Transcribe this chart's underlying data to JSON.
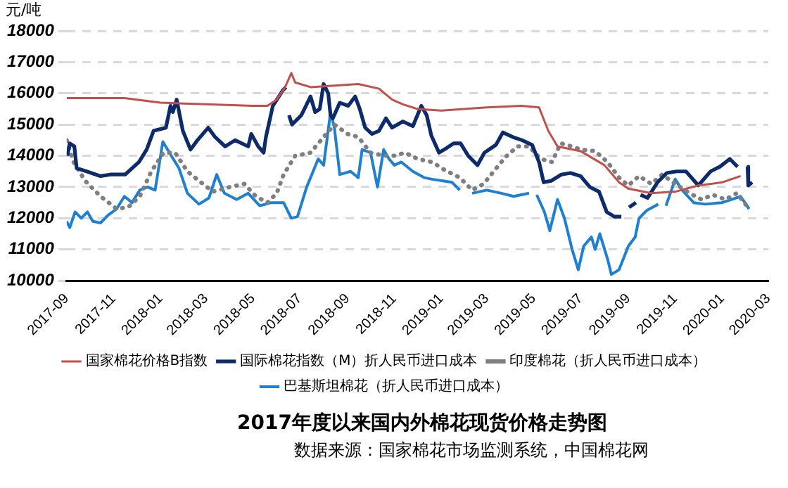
{
  "chart_data": {
    "type": "line",
    "title": "2017年度以来国内外棉花现货价格走势图",
    "subtitle": "数据来源：国家棉花市场监测系统，中国棉花网",
    "ylabel": "元/吨",
    "xlim": [
      "2017-09",
      "2020-03"
    ],
    "xticks": [
      "2017-09",
      "2017-11",
      "2018-01",
      "2018-03",
      "2018-05",
      "2018-07",
      "2018-09",
      "2018-11",
      "2019-01",
      "2019-03",
      "2019-05",
      "2019-07",
      "2019-09",
      "2019-11",
      "2020-01",
      "2020-03"
    ],
    "ylim": [
      10000,
      18000
    ],
    "yticks": [
      10000,
      11000,
      12000,
      13000,
      14000,
      15000,
      16000,
      17000,
      18000
    ],
    "grid": "y",
    "legend": "bottom",
    "marker": "none",
    "series": [
      {
        "name": "国家棉花价格B指数",
        "color": "#c0504d",
        "line_style": "solid",
        "x": [
          "2017-09-01",
          "2017-10-15",
          "2017-11-15",
          "2018-01-01",
          "2018-03-01",
          "2018-05-01",
          "2018-05-20",
          "2018-06-01",
          "2018-06-12",
          "2018-06-20",
          "2018-06-25",
          "2018-07-15",
          "2018-08-15",
          "2018-09-15",
          "2018-10-12",
          "2018-10-29",
          "2018-11-12",
          "2018-12-01",
          "2019-01-01",
          "2019-03-01",
          "2019-04-15",
          "2019-05-08",
          "2019-05-20",
          "2019-06-01",
          "2019-07-01",
          "2019-08-01",
          "2019-08-20",
          "2019-09-01",
          "2019-10-01",
          "2019-11-01",
          "2019-12-01",
          "2020-01-01",
          "2020-01-25"
        ],
        "values": [
          15850,
          15850,
          15850,
          15700,
          15650,
          15600,
          15600,
          15800,
          16200,
          16650,
          16350,
          16200,
          16250,
          16300,
          16150,
          15800,
          15650,
          15500,
          15450,
          15550,
          15600,
          15550,
          14800,
          14300,
          14150,
          13700,
          13150,
          12950,
          12800,
          12850,
          13050,
          13150,
          13350
        ]
      },
      {
        "name": "国际棉花指数（M）折人民币进口成本",
        "color": "#0d2a6b",
        "line_style": "solid",
        "x": [
          "2017-09-02",
          "2017-09-05",
          "2017-09-11",
          "2017-09-14",
          "2017-09-27",
          "2017-10-15",
          "2017-10-28",
          "2017-11-16",
          "2017-12-04",
          "2017-12-14",
          "2017-12-23",
          "2018-01-08",
          "2018-01-14",
          "2018-01-17",
          "2018-01-22",
          "2018-01-30",
          "2018-02-09",
          "2018-02-18",
          "2018-03-04",
          "2018-03-13",
          "2018-03-26",
          "2018-04-08",
          "2018-04-25",
          "2018-04-29",
          "2018-05-08",
          "2018-05-15",
          "2018-05-18",
          "2018-05-27",
          "2018-06-09",
          "2018-06-13",
          "2018-06-15",
          "2018-06-17",
          "2018-06-21",
          "2018-07-03",
          "2018-07-09",
          "2018-07-15",
          "2018-07-21",
          "2018-07-27",
          "2018-08-01",
          "2018-08-07",
          "2018-08-10",
          "2018-08-13",
          "2018-08-22",
          "2018-09-02",
          "2018-09-11",
          "2018-09-17",
          "2018-09-24",
          "2018-10-03",
          "2018-10-12",
          "2018-10-21",
          "2018-10-29",
          "2018-11-12",
          "2018-11-25",
          "2018-12-06",
          "2018-12-13",
          "2018-12-19",
          "2018-12-29",
          "2019-01-08",
          "2019-01-17",
          "2019-01-26",
          "2019-02-05",
          "2019-02-17",
          "2019-02-26",
          "2019-03-13",
          "2019-03-22",
          "2019-04-04",
          "2019-04-16",
          "2019-04-29",
          "2019-05-08",
          "2019-05-14",
          "2019-05-24",
          "2019-06-06",
          "2019-06-18",
          "2019-07-01",
          "2019-07-13",
          "2019-07-25",
          "2019-08-04",
          "2019-08-14",
          "2019-08-23",
          "2019-08-27",
          "2019-09-02",
          "2019-09-11",
          "2019-09-14",
          "2019-09-17",
          "2019-09-26",
          "2019-10-09",
          "2019-10-21",
          "2019-11-03",
          "2019-11-15",
          "2019-12-01",
          "2019-12-17",
          "2019-12-29",
          "2020-01-11",
          "2020-01-21",
          "2020-01-24",
          "2020-02-03",
          "2020-02-04",
          "2020-02-09"
        ],
        "values": [
          14000,
          14400,
          14300,
          13600,
          13500,
          13350,
          13400,
          13400,
          13800,
          14200,
          14800,
          14900,
          15600,
          15400,
          15800,
          14800,
          14200,
          14500,
          14900,
          14600,
          14300,
          14500,
          14300,
          14700,
          14300,
          14100,
          14600,
          15600,
          16100,
          16200,
          null,
          15300,
          15000,
          15300,
          15600,
          15900,
          15400,
          15500,
          16300,
          16000,
          15300,
          15200,
          15700,
          15600,
          15900,
          15500,
          14900,
          14700,
          14800,
          15200,
          14900,
          15100,
          14950,
          15600,
          15300,
          14650,
          14100,
          14250,
          14400,
          14400,
          14000,
          13700,
          14100,
          14350,
          14750,
          14600,
          14500,
          14350,
          13800,
          13150,
          13200,
          13400,
          13450,
          13350,
          13000,
          12850,
          12200,
          12050,
          12050,
          null,
          12350,
          12500,
          null,
          12750,
          12650,
          13150,
          13450,
          13500,
          13500,
          13050,
          13500,
          13650,
          13900,
          13650,
          null,
          13650,
          13050,
          13150
        ]
      },
      {
        "name": "印度棉花（折人民币进口成本）",
        "color": "#7f7f7f",
        "line_style": "dotted",
        "x": [
          "2017-09-01",
          "2017-09-10",
          "2017-09-25",
          "2017-10-15",
          "2017-11-05",
          "2017-11-20",
          "2017-12-05",
          "2017-12-20",
          "2018-01-05",
          "2018-01-20",
          "2018-02-05",
          "2018-02-20",
          "2018-03-10",
          "2018-04-01",
          "2018-04-20",
          "2018-05-05",
          "2018-05-20",
          "2018-06-01",
          "2018-06-10",
          "2018-06-25",
          "2018-07-15",
          "2018-08-01",
          "2018-08-15",
          "2018-09-01",
          "2018-09-15",
          "2018-10-01",
          "2018-10-20",
          "2018-11-01",
          "2018-11-15",
          "2018-12-01",
          "2018-12-20",
          "2019-01-05",
          "2019-01-25",
          "2019-02-10",
          "2019-02-25",
          "2019-03-10",
          "2019-03-25",
          "2019-04-10",
          "2019-04-25",
          "2019-05-10",
          "2019-05-25",
          "2019-06-05",
          "2019-06-20",
          "2019-07-01",
          "2019-07-20",
          "2019-08-05",
          "2019-08-20",
          "2019-09-01",
          "2019-09-15",
          "2019-10-01",
          "2019-10-15",
          "2019-11-01",
          "2019-11-20",
          "2019-12-05",
          "2019-12-20",
          "2020-01-05",
          "2020-01-20",
          "2020-02-05"
        ],
        "values": [
          14500,
          13800,
          13200,
          12700,
          12300,
          12350,
          12700,
          13500,
          14100,
          14100,
          13500,
          13200,
          12850,
          13000,
          13100,
          12700,
          12500,
          12800,
          13400,
          14000,
          14100,
          14600,
          15000,
          14700,
          14600,
          14100,
          14000,
          14000,
          14100,
          13900,
          13800,
          13550,
          13300,
          12900,
          13100,
          13500,
          13950,
          14300,
          14300,
          13900,
          13800,
          14400,
          14300,
          14200,
          14150,
          13800,
          13300,
          13050,
          13350,
          13100,
          13400,
          13100,
          12800,
          12600,
          12750,
          12600,
          12800,
          12300
        ]
      },
      {
        "name": "巴基斯坦棉花（折人民币进口成本）",
        "color": "#1f7fd0",
        "line_style": "solid",
        "x": [
          "2017-09-01",
          "2017-09-05",
          "2017-09-12",
          "2017-09-20",
          "2017-09-28",
          "2017-10-05",
          "2017-10-15",
          "2017-10-25",
          "2017-11-05",
          "2017-11-15",
          "2017-11-25",
          "2017-12-05",
          "2017-12-15",
          "2017-12-25",
          "2018-01-04",
          "2018-01-15",
          "2018-01-25",
          "2018-02-05",
          "2018-02-20",
          "2018-03-05",
          "2018-03-15",
          "2018-03-25",
          "2018-04-10",
          "2018-04-25",
          "2018-05-10",
          "2018-05-25",
          "2018-06-10",
          "2018-06-20",
          "2018-06-28",
          "2018-07-10",
          "2018-07-25",
          "2018-08-01",
          "2018-08-10",
          "2018-08-15",
          "2018-08-22",
          "2018-09-05",
          "2018-09-15",
          "2018-09-20",
          "2018-10-01",
          "2018-10-10",
          "2018-10-18",
          "2018-10-25",
          "2018-11-01",
          "2018-11-10",
          "2018-11-25",
          "2018-12-10",
          "2018-12-20",
          "2019-01-15",
          "2019-01-25",
          "2019-01-30",
          "2019-02-10",
          "2019-03-01",
          "2019-03-20",
          "2019-04-05",
          "2019-04-25",
          "2019-05-01",
          "2019-05-05",
          "2019-05-15",
          "2019-05-22",
          "2019-06-01",
          "2019-06-10",
          "2019-06-20",
          "2019-06-28",
          "2019-07-05",
          "2019-07-15",
          "2019-07-20",
          "2019-07-26",
          "2019-08-05",
          "2019-08-10",
          "2019-08-20",
          "2019-09-01",
          "2019-09-10",
          "2019-09-15",
          "2019-09-25",
          "2019-10-10",
          "2019-10-15",
          "2019-10-20",
          "2019-11-01",
          "2019-11-10",
          "2019-11-25",
          "2019-12-10",
          "2020-01-01",
          "2020-01-25",
          "2020-02-05"
        ],
        "values": [
          11900,
          11700,
          12200,
          12000,
          12200,
          11900,
          11850,
          12100,
          12300,
          12700,
          12500,
          12900,
          13000,
          12900,
          14450,
          14000,
          13600,
          12800,
          12450,
          12650,
          13400,
          12800,
          12600,
          12800,
          12400,
          12500,
          12500,
          12000,
          12050,
          13000,
          13900,
          13700,
          15400,
          14900,
          13400,
          13500,
          13300,
          14200,
          14100,
          13000,
          14200,
          13900,
          13700,
          13800,
          13500,
          13300,
          13250,
          13150,
          12900,
          null,
          12800,
          12900,
          12800,
          12700,
          12800,
          null,
          12750,
          12200,
          11600,
          12600,
          12000,
          11000,
          10350,
          11100,
          11400,
          11000,
          11500,
          10700,
          10200,
          10350,
          11100,
          11400,
          12000,
          12250,
          12450,
          null,
          12400,
          13250,
          12900,
          12500,
          12450,
          12500,
          12700,
          12300
        ]
      }
    ]
  }
}
